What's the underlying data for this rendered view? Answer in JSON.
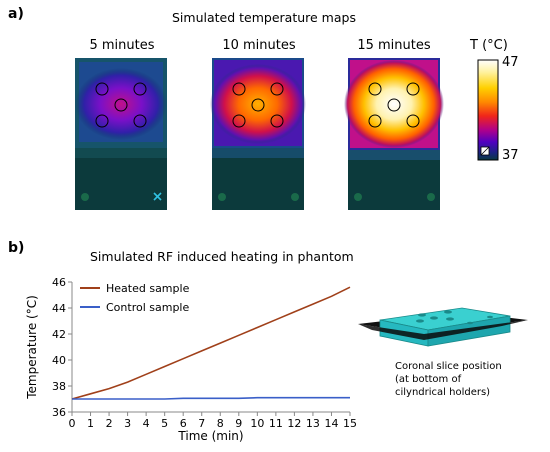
{
  "panel_a": {
    "label": "a)",
    "title": "Simulated temperature maps",
    "maps": [
      {
        "title": "5 minutes",
        "intensity": 0.35
      },
      {
        "title": "10 minutes",
        "intensity": 0.62
      },
      {
        "title": "15 minutes",
        "intensity": 0.92
      }
    ],
    "colorbar": {
      "title": "T (°C)",
      "max_label": "47",
      "min_label": "37",
      "colors": [
        "#ffffff",
        "#fff2a0",
        "#ffd000",
        "#ff8a00",
        "#f0251a",
        "#b0008a",
        "#5000c0",
        "#1a2580",
        "#0a3a40"
      ]
    },
    "marker_icon": "x-marker-icon"
  },
  "panel_b": {
    "label": "b)",
    "title": "Simulated RF induced heating in phantom",
    "caption": [
      "Coronal slice position",
      "(at bottom of",
      "cilyndrical holders)"
    ]
  },
  "chart_data": {
    "type": "line",
    "xlabel": "Time (min)",
    "ylabel": "Temperature (°C)",
    "xlim": [
      0,
      15
    ],
    "ylim": [
      36,
      46
    ],
    "xticks": [
      0,
      1,
      2,
      3,
      4,
      5,
      6,
      7,
      8,
      9,
      10,
      11,
      12,
      13,
      14,
      15
    ],
    "yticks": [
      36,
      38,
      40,
      42,
      44,
      46
    ],
    "legend": "top-left",
    "x": [
      0,
      1,
      2,
      3,
      4,
      5,
      6,
      7,
      8,
      9,
      10,
      11,
      12,
      13,
      14,
      15
    ],
    "series": [
      {
        "name": "Heated sample",
        "color": "#a0401a",
        "values": [
          37.0,
          37.4,
          37.8,
          38.3,
          38.9,
          39.5,
          40.1,
          40.7,
          41.3,
          41.9,
          42.5,
          43.1,
          43.7,
          44.3,
          44.9,
          45.6
        ]
      },
      {
        "name": "Control sample",
        "color": "#3a5fc8",
        "values": [
          37.0,
          37.0,
          37.0,
          37.0,
          37.0,
          37.0,
          37.05,
          37.05,
          37.05,
          37.05,
          37.1,
          37.1,
          37.1,
          37.1,
          37.1,
          37.1
        ]
      }
    ]
  }
}
